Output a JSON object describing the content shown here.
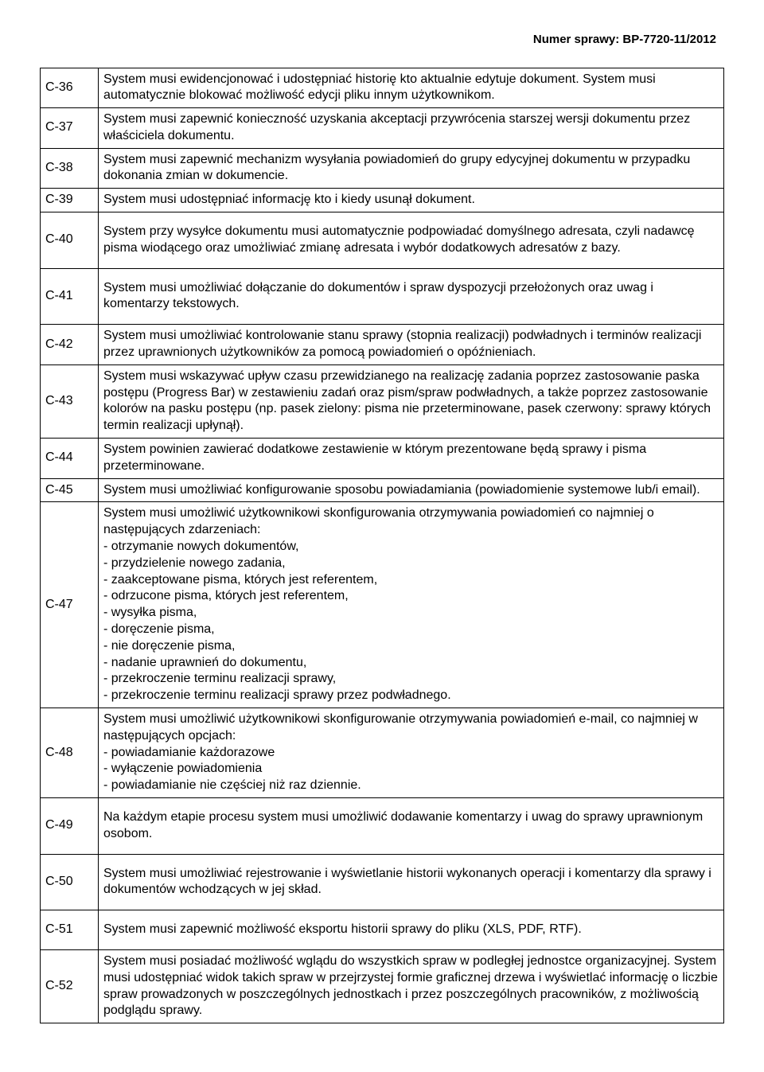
{
  "header": {
    "case_number": "Numer sprawy: BP-7720-11/2012"
  },
  "rows": [
    {
      "id": "C-36",
      "desc": "System musi ewidencjonować i udostępniać historię kto aktualnie edytuje dokument. System musi automatycznie blokować możliwość edycji pliku innym użytkownikom."
    },
    {
      "id": "C-37",
      "desc": "System musi zapewnić konieczność uzyskania akceptacji przywrócenia starszej wersji dokumentu przez właściciela dokumentu."
    },
    {
      "id": "C-38",
      "desc": "System musi zapewnić mechanizm wysyłania powiadomień do grupy edycyjnej dokumentu w przypadku dokonania zmian w dokumencie."
    },
    {
      "id": "C-39",
      "desc": "System musi udostępniać informację kto i kiedy usunął dokument."
    },
    {
      "id": "C-40",
      "desc": "System przy wysyłce dokumentu musi automatycznie podpowiadać domyślnego adresata, czyli nadawcę pisma wiodącego oraz umożliwiać zmianę adresata i wybór dodatkowych adresatów z bazy.",
      "pad": true
    },
    {
      "id": "C-41",
      "desc": "System musi umożliwiać dołączanie do dokumentów i spraw dyspozycji przełożonych oraz uwag i komentarzy tekstowych.",
      "pad": true
    },
    {
      "id": "C-42",
      "desc": "System musi umożliwiać kontrolowanie stanu sprawy (stopnia realizacji) podwładnych i terminów realizacji przez uprawnionych użytkowników za pomocą powiadomień o opóźnieniach."
    },
    {
      "id": "C-43",
      "desc": "System musi wskazywać upływ czasu przewidzianego na realizację zadania poprzez zastosowanie paska postępu (Progress Bar) w zestawieniu zadań oraz pism/spraw podwładnych, a także poprzez zastosowanie kolorów na pasku postępu (np. pasek zielony: pisma nie przeterminowane, pasek czerwony: sprawy których termin realizacji upłynął)."
    },
    {
      "id": "C-44",
      "desc": "System powinien zawierać dodatkowe zestawienie w którym prezentowane będą sprawy i pisma przeterminowane."
    },
    {
      "id": "C-45",
      "desc": "System musi umożliwiać konfigurowanie sposobu powiadamiania (powiadomienie systemowe lub/i email)."
    },
    {
      "id": "C-47",
      "desc": "System musi umożliwić użytkownikowi skonfigurowania otrzymywania powiadomień co najmniej o następujących zdarzeniach:\n- otrzymanie nowych dokumentów,\n- przydzielenie nowego zadania,\n- zaakceptowane pisma, których jest referentem,\n- odrzucone pisma, których jest referentem,\n- wysyłka pisma,\n- doręczenie pisma,\n- nie doręczenie pisma,\n- nadanie uprawnień do dokumentu,\n- przekroczenie terminu realizacji sprawy,\n- przekroczenie terminu realizacji sprawy przez podwładnego.",
      "multiline": true
    },
    {
      "id": "C-48",
      "desc": "System musi umożliwić użytkownikowi skonfigurowanie otrzymywania powiadomień e-mail, co najmniej w następujących opcjach:\n- powiadamianie każdorazowe\n- wyłączenie powiadomienia\n- powiadamianie nie częściej niż raz dziennie.",
      "multiline": true
    },
    {
      "id": "C-49",
      "desc": "Na każdym etapie procesu system musi umożliwić dodawanie komentarzy i uwag do sprawy uprawnionym osobom.",
      "pad": true
    },
    {
      "id": "C-50",
      "desc": "System musi umożliwiać rejestrowanie i wyświetlanie historii wykonanych operacji i komentarzy dla sprawy i dokumentów wchodzących w jej skład.",
      "pad": true
    },
    {
      "id": "C-51",
      "desc": "System musi zapewnić możliwość eksportu historii sprawy do pliku (XLS, PDF, RTF).",
      "pad": true
    },
    {
      "id": "C-52",
      "desc": "System musi posiadać możliwość wglądu do wszystkich spraw w podległej jednostce organizacyjnej. System musi udostępniać widok takich spraw w przejrzystej formie graficznej drzewa i wyświetlać informację o liczbie spraw prowadzonych w poszczególnych jednostkach i przez poszczególnych pracowników, z możliwością podglądu sprawy."
    }
  ]
}
